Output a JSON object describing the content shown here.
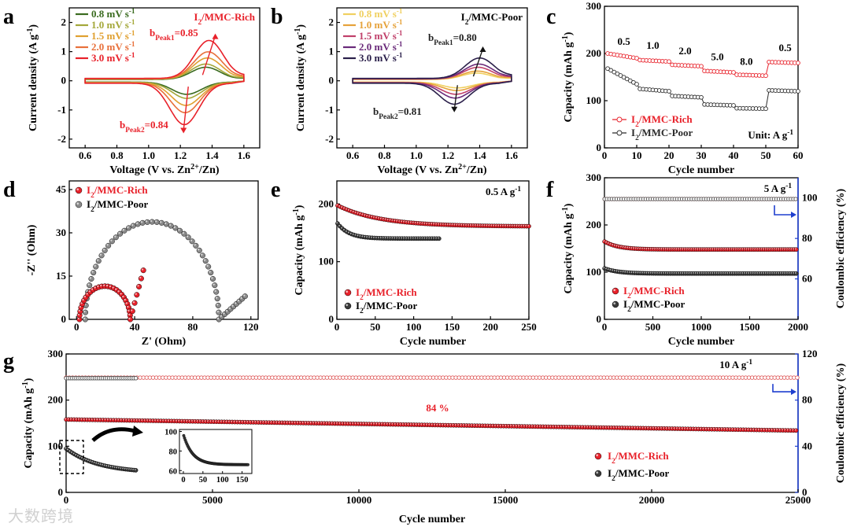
{
  "watermark": "大数跨境",
  "colors": {
    "rich": "#e8212a",
    "poor": "#2b2b2b",
    "blue": "#1f3fcf"
  },
  "chart_data": [
    {
      "panel": "a",
      "type": "line",
      "xlabel": "Voltage (V vs. Zn2+/Zn)",
      "ylabel": "Current density (A g-1)",
      "xlim": [
        0.5,
        1.7
      ],
      "ylim": [
        -2.3,
        2.5
      ],
      "xticks": [
        "0.6",
        "0.8",
        "1.0",
        "1.2",
        "1.4",
        "1.6"
      ],
      "yticks": [
        "-2",
        "-1",
        "0",
        "1",
        "2"
      ],
      "title": "I2/MMC-Rich",
      "annotations": [
        "bPeak1=0.85",
        "bPeak2=0.84"
      ],
      "series": [
        {
          "name": "0.8 mV s-1",
          "color": "#3a6b1f",
          "ox_peak": [
            1.36,
            0.42
          ],
          "red_peak": [
            1.24,
            -0.42
          ]
        },
        {
          "name": "1.0 mV s-1",
          "color": "#a4a83a",
          "ox_peak": [
            1.36,
            0.52
          ],
          "red_peak": [
            1.24,
            -0.55
          ]
        },
        {
          "name": "1.5 mV s-1",
          "color": "#e0a030",
          "ox_peak": [
            1.37,
            0.72
          ],
          "red_peak": [
            1.235,
            -0.78
          ]
        },
        {
          "name": "2.0 mV s-1",
          "color": "#e8703a",
          "ox_peak": [
            1.375,
            0.92
          ],
          "red_peak": [
            1.23,
            -1.02
          ]
        },
        {
          "name": "3.0 mV s-1",
          "color": "#e8212a",
          "ox_peak": [
            1.38,
            1.3
          ],
          "red_peak": [
            1.225,
            -1.42
          ]
        }
      ]
    },
    {
      "panel": "b",
      "type": "line",
      "xlabel": "Voltage (V vs. Zn2+/Zn)",
      "ylabel": "Current density (A g-1)",
      "xlim": [
        0.5,
        1.7
      ],
      "ylim": [
        -2.3,
        2.5
      ],
      "xticks": [
        "0.6",
        "0.8",
        "1.0",
        "1.2",
        "1.4",
        "1.6"
      ],
      "yticks": [
        "-2",
        "-1",
        "0",
        "1",
        "2"
      ],
      "title": "I2/MMC-Poor",
      "annotations": [
        "bPeak1=0.80",
        "bPeak2=0.81"
      ],
      "series": [
        {
          "name": "0.8 mV s-1",
          "color": "#f0d060",
          "ox_peak": [
            1.38,
            0.22
          ],
          "red_peak": [
            1.26,
            -0.2
          ]
        },
        {
          "name": "1.0 mV s-1",
          "color": "#e6a23a",
          "ox_peak": [
            1.385,
            0.28
          ],
          "red_peak": [
            1.255,
            -0.28
          ]
        },
        {
          "name": "1.5 mV s-1",
          "color": "#c0406a",
          "ox_peak": [
            1.39,
            0.4
          ],
          "red_peak": [
            1.25,
            -0.4
          ]
        },
        {
          "name": "2.0 mV s-1",
          "color": "#6a2a7a",
          "ox_peak": [
            1.395,
            0.5
          ],
          "red_peak": [
            1.245,
            -0.52
          ]
        },
        {
          "name": "3.0 mV s-1",
          "color": "#2a1f4a",
          "ox_peak": [
            1.4,
            0.7
          ],
          "red_peak": [
            1.24,
            -0.72
          ]
        }
      ]
    },
    {
      "panel": "c",
      "type": "scatter",
      "xlabel": "Cycle number",
      "ylabel": "Capacity (mAh g-1)",
      "xlim": [
        0,
        60
      ],
      "ylim": [
        0,
        300
      ],
      "xticks": [
        "0",
        "10",
        "20",
        "30",
        "40",
        "50",
        "60"
      ],
      "yticks": [
        "0",
        "100",
        "200",
        "300"
      ],
      "rates": [
        "0.5",
        "1.0",
        "2.0",
        "5.0",
        "8.0",
        "0.5"
      ],
      "unit_label": "Unit: A g-1",
      "series": [
        {
          "name": "I2/MMC-Rich",
          "steps": [
            [
              200,
              190
            ],
            [
              186,
              183
            ],
            [
              176,
              173
            ],
            [
              163,
              160
            ],
            [
              155,
              153
            ],
            [
              182,
              180
            ]
          ]
        },
        {
          "name": "I2/MMC-Poor",
          "steps": [
            [
              168,
              135
            ],
            [
              125,
              120
            ],
            [
              110,
              107
            ],
            [
              92,
              90
            ],
            [
              84,
              83
            ],
            [
              122,
              120
            ]
          ]
        }
      ]
    },
    {
      "panel": "d",
      "type": "scatter",
      "xlabel": "Z' (Ohm)",
      "ylabel": "-Z'' (Ohm)",
      "xlim": [
        -5,
        125
      ],
      "ylim": [
        0,
        48
      ],
      "xticks": [
        "0",
        "40",
        "80",
        "120"
      ],
      "yticks": [
        "0",
        "15",
        "30",
        "45"
      ],
      "series": [
        {
          "name": "I2/MMC-Rich",
          "semicircle": [
            2,
            37,
            11.5
          ],
          "tail": [
            [
              37,
              0
            ],
            [
              46,
              17
            ]
          ]
        },
        {
          "name": "I2/MMC-Poor",
          "semicircle": [
            6,
            98,
            33.8
          ],
          "tail": [
            [
              98,
              0
            ],
            [
              116,
              8
            ]
          ]
        }
      ]
    },
    {
      "panel": "e",
      "type": "scatter",
      "xlabel": "Cycle number",
      "ylabel": "Capacity (mAh g-1)",
      "xlim": [
        0,
        250
      ],
      "ylim": [
        0,
        240
      ],
      "xticks": [
        "0",
        "50",
        "100",
        "150",
        "200",
        "250"
      ],
      "yticks": [
        "0",
        "100",
        "200"
      ],
      "rate_label": "0.5 A g-1",
      "series": [
        {
          "name": "I2/MMC-Rich",
          "x_end": 250,
          "start": 198,
          "end": 161
        },
        {
          "name": "I2/MMC-Poor",
          "x_end": 135,
          "start": 168,
          "end": 140
        }
      ]
    },
    {
      "panel": "f",
      "type": "scatter",
      "xlabel": "Cycle number",
      "ylabel": "Capacity (mAh g-1)",
      "y2label": "Coulombic efficiency (%)",
      "xlim": [
        0,
        2000
      ],
      "ylim": [
        0,
        300
      ],
      "y2lim": [
        40,
        110
      ],
      "xticks": [
        "0",
        "500",
        "1000",
        "1500",
        "2000"
      ],
      "yticks": [
        "0",
        "100",
        "200",
        "300"
      ],
      "y2ticks": [
        "60",
        "80",
        "100"
      ],
      "rate_label": "5 A g-1",
      "series": [
        {
          "name": "I2/MMC-Rich",
          "start": 165,
          "end": 148,
          "ce": 99.5
        },
        {
          "name": "I2/MMC-Poor",
          "start": 108,
          "end": 97,
          "ce": 99.5
        }
      ]
    },
    {
      "panel": "g",
      "type": "scatter",
      "xlabel": "Cycle number",
      "ylabel": "Capacity (mAh g-1)",
      "y2label": "Coulombic efficiency (%)",
      "xlim": [
        0,
        25000
      ],
      "ylim": [
        0,
        300
      ],
      "y2lim": [
        0,
        120
      ],
      "xticks": [
        "0",
        "5000",
        "10000",
        "15000",
        "20000",
        "25000"
      ],
      "yticks": [
        "0",
        "100",
        "200",
        "300"
      ],
      "y2ticks": [
        "0",
        "40",
        "80",
        "120"
      ],
      "rate_label": "10 A g-1",
      "retention_label": "84 %",
      "series": [
        {
          "name": "I2/MMC-Rich",
          "x_end": 25000,
          "start": 158,
          "end": 134,
          "ce": 99.5
        },
        {
          "name": "I2/MMC-Poor",
          "x_end": 2400,
          "start": 95,
          "end": 42,
          "ce": 99
        }
      ],
      "inset": {
        "xlim": [
          -10,
          175
        ],
        "ylim": [
          57,
          102
        ],
        "xticks": [
          "0",
          "50",
          "100",
          "150"
        ],
        "yticks": [
          "60",
          "80",
          "100"
        ],
        "start": 97,
        "end": 66
      }
    }
  ]
}
